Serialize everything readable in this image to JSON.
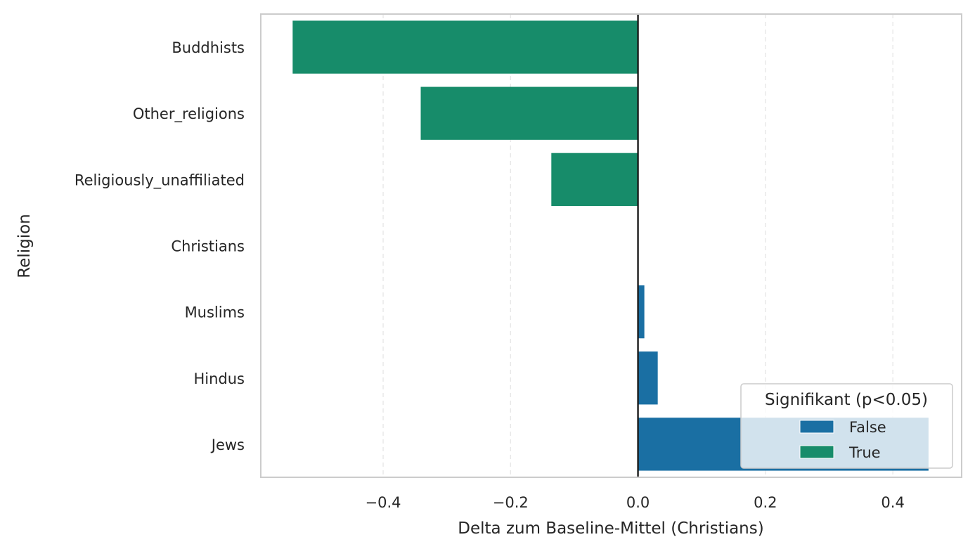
{
  "chart_data": {
    "type": "bar",
    "orientation": "horizontal",
    "categories": [
      "Buddhists",
      "Other_religions",
      "Religiously_unaffiliated",
      "Christians",
      "Muslims",
      "Hindus",
      "Jews"
    ],
    "values": [
      -0.542,
      -0.341,
      -0.136,
      0.0,
      0.01,
      0.031,
      0.456
    ],
    "significant": [
      true,
      true,
      true,
      false,
      false,
      false,
      false
    ],
    "xlabel": "Delta zum Baseline-Mittel (Christians)",
    "ylabel": "Religion",
    "xlim": [
      -0.592,
      0.508
    ],
    "xticks": [
      -0.4,
      -0.2,
      0.0,
      0.2,
      0.4
    ],
    "xtick_labels": [
      "−0.4",
      "−0.2",
      "0.0",
      "0.2",
      "0.4"
    ],
    "grid": "x-dashed",
    "legend": {
      "title": "Signifikant (p<0.05)",
      "position": "lower-right",
      "entries": [
        {
          "label": "False",
          "color": "#1a6fa3"
        },
        {
          "label": "True",
          "color": "#178c6a"
        }
      ]
    },
    "colors": {
      "false": "#1a6fa3",
      "true": "#178c6a"
    }
  }
}
